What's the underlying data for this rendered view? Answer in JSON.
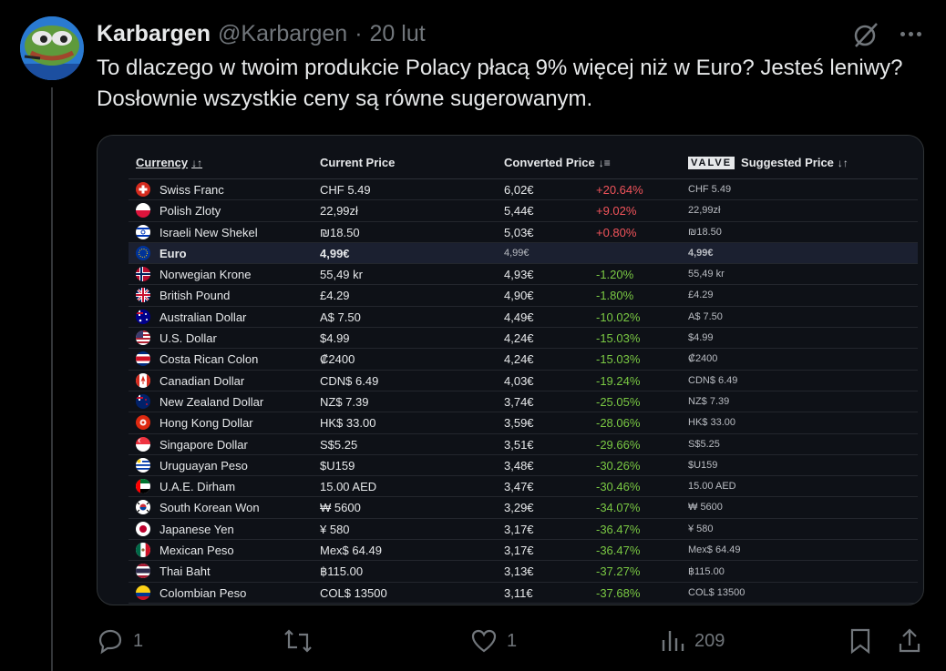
{
  "tweet": {
    "display_name": "Karbargen",
    "handle": "@Karbargen",
    "separator": "·",
    "date": "20 lut",
    "text": "To dlaczego w twoim produkcie Polacy płacą 9% więcej niż w Euro? Jesteś leniwy? Dosłownie wszystkie ceny są równe sugerowanym."
  },
  "table": {
    "headers": {
      "currency": "Currency",
      "current_price": "Current Price",
      "converted_price": "Converted Price",
      "valve": "VALVE",
      "suggested_price": "Suggested Price"
    },
    "rows": [
      {
        "flag": "swiss-flag",
        "name": "Swiss Franc",
        "current": "CHF 5.49",
        "converted": "6,02€",
        "pct": "+20.64%",
        "suggested": "CHF 5.49"
      },
      {
        "flag": "poland-flag",
        "name": "Polish Zloty",
        "current": "22,99zł",
        "converted": "5,44€",
        "pct": "+9.02%",
        "suggested": "22,99zł"
      },
      {
        "flag": "israel-flag",
        "name": "Israeli New Shekel",
        "current": "₪18.50",
        "converted": "5,03€",
        "pct": "+0.80%",
        "suggested": "₪18.50"
      },
      {
        "flag": "eu-flag",
        "name": "Euro",
        "current": "4,99€",
        "converted": "4,99€",
        "pct": "",
        "suggested": "4,99€"
      },
      {
        "flag": "norway-flag",
        "name": "Norwegian Krone",
        "current": "55,49 kr",
        "converted": "4,93€",
        "pct": "-1.20%",
        "suggested": "55,49 kr"
      },
      {
        "flag": "uk-flag",
        "name": "British Pound",
        "current": "£4.29",
        "converted": "4,90€",
        "pct": "-1.80%",
        "suggested": "£4.29"
      },
      {
        "flag": "australia-flag",
        "name": "Australian Dollar",
        "current": "A$ 7.50",
        "converted": "4,49€",
        "pct": "-10.02%",
        "suggested": "A$ 7.50"
      },
      {
        "flag": "usa-flag",
        "name": "U.S. Dollar",
        "current": "$4.99",
        "converted": "4,24€",
        "pct": "-15.03%",
        "suggested": "$4.99"
      },
      {
        "flag": "costa-rica-flag",
        "name": "Costa Rican Colon",
        "current": "₡2400",
        "converted": "4,24€",
        "pct": "-15.03%",
        "suggested": "₡2400"
      },
      {
        "flag": "canada-flag",
        "name": "Canadian Dollar",
        "current": "CDN$ 6.49",
        "converted": "4,03€",
        "pct": "-19.24%",
        "suggested": "CDN$ 6.49"
      },
      {
        "flag": "new-zealand-flag",
        "name": "New Zealand Dollar",
        "current": "NZ$ 7.39",
        "converted": "3,74€",
        "pct": "-25.05%",
        "suggested": "NZ$ 7.39"
      },
      {
        "flag": "hong-kong-flag",
        "name": "Hong Kong Dollar",
        "current": "HK$ 33.00",
        "converted": "3,59€",
        "pct": "-28.06%",
        "suggested": "HK$ 33.00"
      },
      {
        "flag": "singapore-flag",
        "name": "Singapore Dollar",
        "current": "S$5.25",
        "converted": "3,51€",
        "pct": "-29.66%",
        "suggested": "S$5.25"
      },
      {
        "flag": "uruguay-flag",
        "name": "Uruguayan Peso",
        "current": "$U159",
        "converted": "3,48€",
        "pct": "-30.26%",
        "suggested": "$U159"
      },
      {
        "flag": "uae-flag",
        "name": "U.A.E. Dirham",
        "current": "15.00 AED",
        "converted": "3,47€",
        "pct": "-30.46%",
        "suggested": "15.00 AED"
      },
      {
        "flag": "south-korea-flag",
        "name": "South Korean Won",
        "current": "₩ 5600",
        "converted": "3,29€",
        "pct": "-34.07%",
        "suggested": "₩ 5600"
      },
      {
        "flag": "japan-flag",
        "name": "Japanese Yen",
        "current": "¥ 580",
        "converted": "3,17€",
        "pct": "-36.47%",
        "suggested": "¥ 580"
      },
      {
        "flag": "mexico-flag",
        "name": "Mexican Peso",
        "current": "Mex$ 64.49",
        "converted": "3,17€",
        "pct": "-36.47%",
        "suggested": "Mex$ 64.49"
      },
      {
        "flag": "thailand-flag",
        "name": "Thai Baht",
        "current": "฿115.00",
        "converted": "3,13€",
        "pct": "-37.27%",
        "suggested": "฿115.00"
      },
      {
        "flag": "colombia-flag",
        "name": "Colombian Peso",
        "current": "COL$ 13500",
        "converted": "3,11€",
        "pct": "-37.68%",
        "suggested": "COL$ 13500"
      }
    ]
  },
  "actions": {
    "replies": "1",
    "retweets": "",
    "likes": "1",
    "views": "209"
  },
  "colors": {
    "background": "#000000",
    "text": "#e7e9ea",
    "muted": "#71767b",
    "positive_pct": "#f2545b",
    "negative_pct": "#7ac943",
    "highlight_row": "#1b2030"
  }
}
